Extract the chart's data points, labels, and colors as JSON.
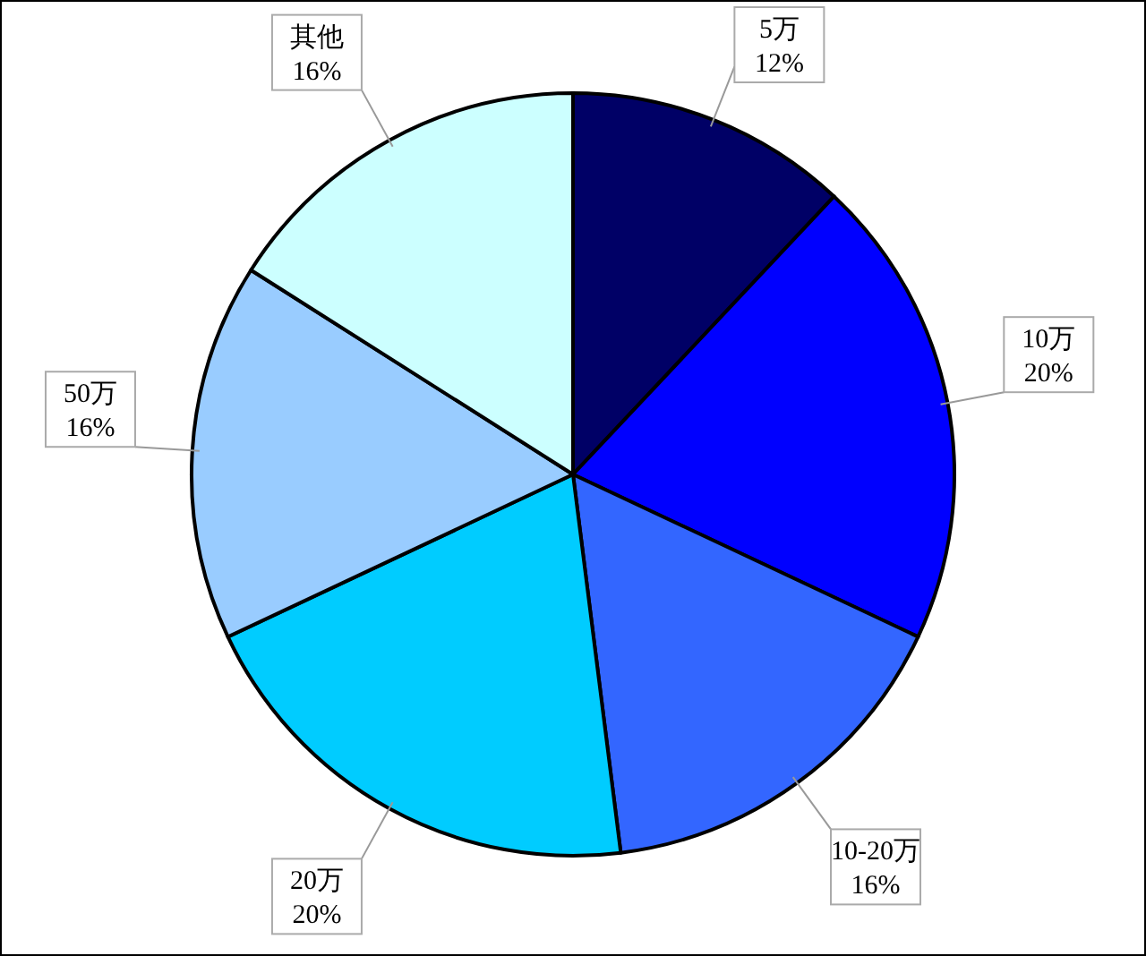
{
  "chart_data": {
    "type": "pie",
    "categories": [
      "5万",
      "10万",
      "10-20万",
      "20万",
      "50万",
      "其他"
    ],
    "values": [
      12,
      20,
      16,
      20,
      16,
      16
    ],
    "value_labels": [
      "12%",
      "20%",
      "16%",
      "20%",
      "16%",
      "16%"
    ],
    "colors": [
      "#000066",
      "#0000ff",
      "#3366ff",
      "#00ccff",
      "#99ccff",
      "#ccffff"
    ],
    "legend": false
  }
}
